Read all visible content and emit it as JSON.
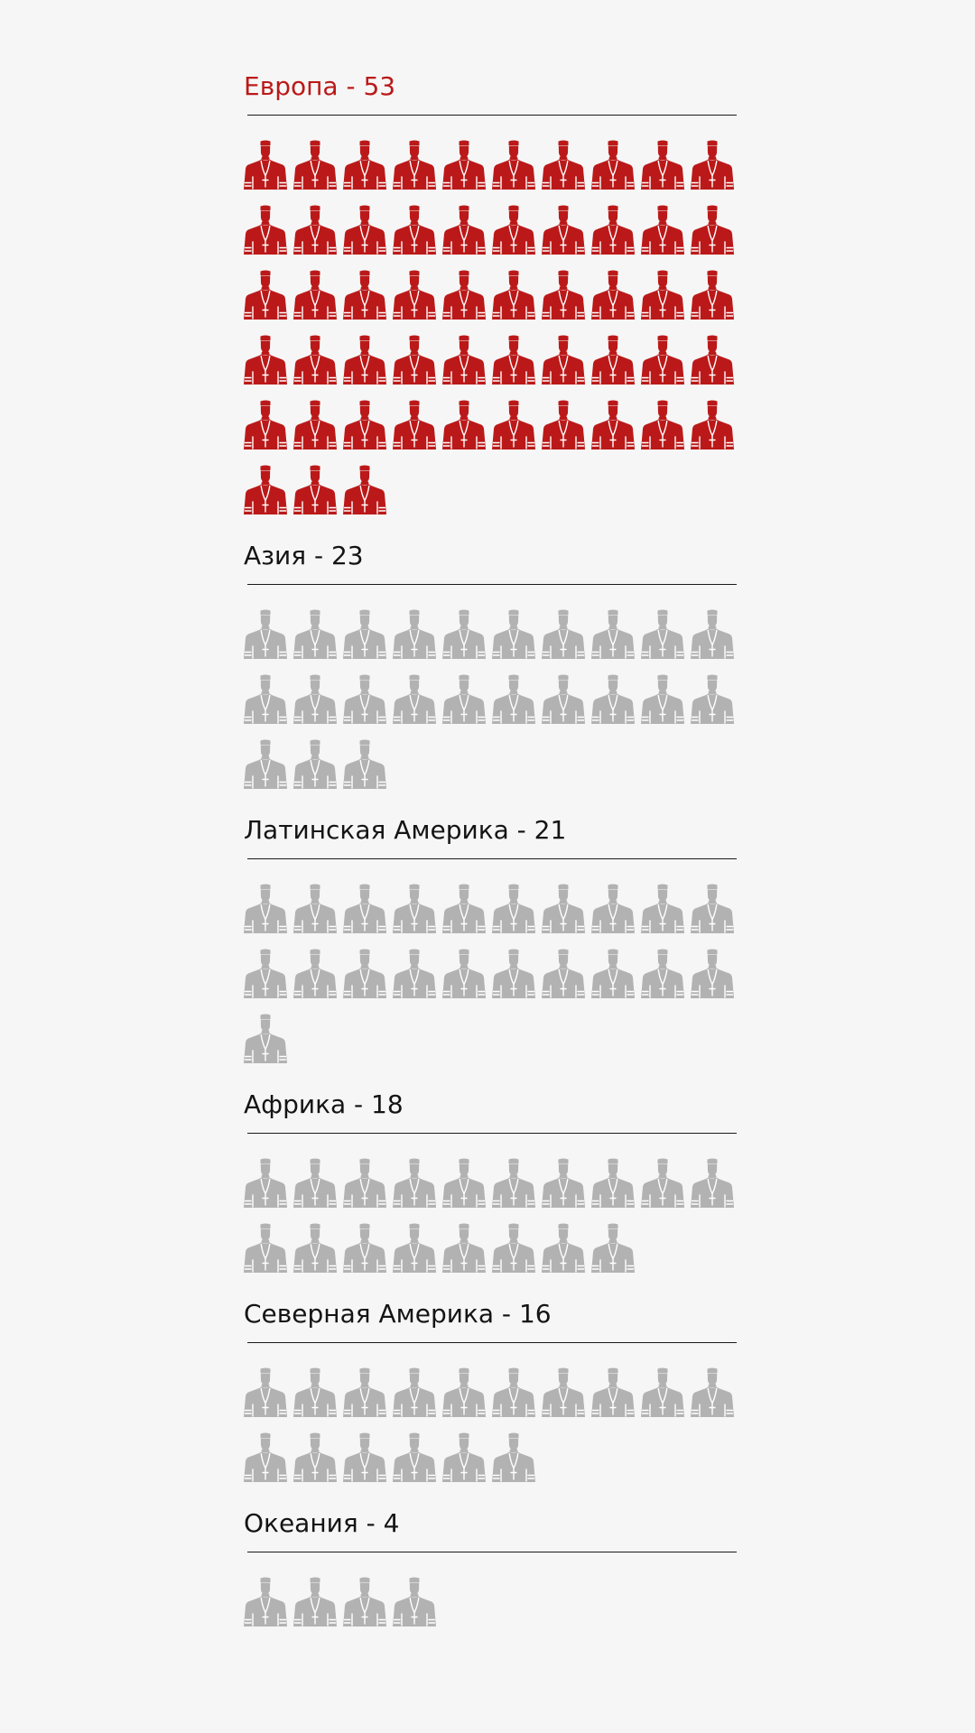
{
  "colors": {
    "highlight": "#bb1919",
    "default": "#b2b2b2",
    "default_text": "#141414",
    "background": "#f6f6f6"
  },
  "icon": "cardinal-icon",
  "icons_per_row": 10,
  "chart_data": {
    "type": "pictogram",
    "unit": "cardinal",
    "categories": [
      "Европа",
      "Азия",
      "Латинская Америка",
      "Африка",
      "Северная Америка",
      "Океания"
    ],
    "values": [
      53,
      23,
      21,
      18,
      16,
      4
    ],
    "labels": [
      "Европа - 53",
      "Азия - 23",
      "Латинская Америка - 21",
      "Африка - 18",
      "Северная Америка - 16",
      "Океания - 4"
    ],
    "highlighted": "Европа"
  }
}
